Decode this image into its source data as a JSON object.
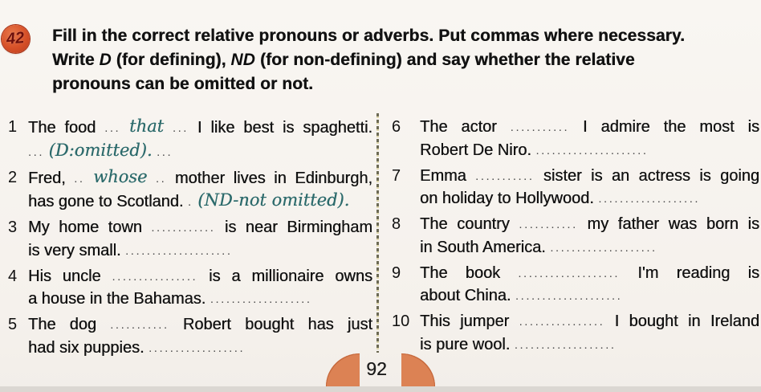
{
  "badge": {
    "number": "42"
  },
  "instructions": {
    "lines": [
      [
        {
          "t": "Fill in the correct relative pronouns or adverbs. Put commas where necessary."
        }
      ],
      [
        {
          "t": "Write "
        },
        {
          "bi": "D"
        },
        {
          "t": " (for defining), "
        },
        {
          "bi": "ND"
        },
        {
          "t": " (for non-defining) and say whether the relative"
        }
      ],
      [
        {
          "t": "pronouns can be omitted or not."
        }
      ]
    ]
  },
  "columns": {
    "left": {
      "items": [
        {
          "num": "1",
          "lines": [
            {
              "fill": true,
              "seg": [
                {
                  "t": "The food"
                },
                {
                  "d": "..."
                },
                {
                  "h": "that"
                },
                {
                  "d": "..."
                },
                {
                  "t": "I like best is spaghetti."
                }
              ]
            },
            {
              "fill": false,
              "seg": [
                {
                  "d": "..."
                },
                {
                  "h": "(D:omitted)."
                },
                {
                  "d": "..."
                }
              ]
            }
          ]
        },
        {
          "num": "2",
          "lines": [
            {
              "fill": true,
              "seg": [
                {
                  "t": "Fred,"
                },
                {
                  "d": ".."
                },
                {
                  "h": "whose"
                },
                {
                  "d": ".."
                },
                {
                  "t": "mother lives in Edinburgh,"
                }
              ]
            },
            {
              "fill": false,
              "seg": [
                {
                  "t": "has gone to Scotland."
                },
                {
                  "d": "."
                },
                {
                  "h": "(ND-not omitted)."
                }
              ]
            }
          ]
        },
        {
          "num": "3",
          "lines": [
            {
              "fill": true,
              "seg": [
                {
                  "t": "My home town"
                },
                {
                  "d": "............"
                },
                {
                  "t": "is near Birmingham"
                }
              ]
            },
            {
              "fill": false,
              "seg": [
                {
                  "t": "is very small."
                },
                {
                  "d": "...................."
                }
              ]
            }
          ]
        },
        {
          "num": "4",
          "lines": [
            {
              "fill": true,
              "seg": [
                {
                  "t": "His uncle"
                },
                {
                  "d": "................"
                },
                {
                  "t": "is a millionaire owns"
                }
              ]
            },
            {
              "fill": false,
              "seg": [
                {
                  "t": "a house in the Bahamas."
                },
                {
                  "d": "..................."
                }
              ]
            }
          ]
        },
        {
          "num": "5",
          "lines": [
            {
              "fill": true,
              "seg": [
                {
                  "t": "The dog"
                },
                {
                  "d": "..........."
                },
                {
                  "t": "Robert bought has just"
                }
              ]
            },
            {
              "fill": false,
              "seg": [
                {
                  "t": "had six puppies."
                },
                {
                  "d": ".................."
                }
              ]
            }
          ]
        }
      ]
    },
    "right": {
      "items": [
        {
          "num": "6",
          "lines": [
            {
              "fill": true,
              "seg": [
                {
                  "t": "The actor"
                },
                {
                  "d": "..........."
                },
                {
                  "t": "I admire the most is"
                }
              ]
            },
            {
              "fill": false,
              "seg": [
                {
                  "t": "Robert De Niro."
                },
                {
                  "d": "....................."
                }
              ]
            }
          ]
        },
        {
          "num": "7",
          "lines": [
            {
              "fill": true,
              "seg": [
                {
                  "t": "Emma"
                },
                {
                  "d": "..........."
                },
                {
                  "t": "sister is an actress is going"
                }
              ]
            },
            {
              "fill": false,
              "seg": [
                {
                  "t": "on holiday to Hollywood."
                },
                {
                  "d": "..................."
                }
              ]
            }
          ]
        },
        {
          "num": "8",
          "lines": [
            {
              "fill": true,
              "seg": [
                {
                  "t": "The country"
                },
                {
                  "d": "..........."
                },
                {
                  "t": "my father was born is"
                }
              ]
            },
            {
              "fill": false,
              "seg": [
                {
                  "t": "in South America."
                },
                {
                  "d": "...................."
                }
              ]
            }
          ]
        },
        {
          "num": "9",
          "lines": [
            {
              "fill": true,
              "seg": [
                {
                  "t": "The book"
                },
                {
                  "d": "..................."
                },
                {
                  "t": "I'm reading is"
                }
              ]
            },
            {
              "fill": false,
              "seg": [
                {
                  "t": "about China."
                },
                {
                  "d": "...................."
                }
              ]
            }
          ]
        },
        {
          "num": "10",
          "lines": [
            {
              "fill": true,
              "seg": [
                {
                  "t": "This jumper"
                },
                {
                  "d": "................"
                },
                {
                  "t": "I bought in Ireland"
                }
              ]
            },
            {
              "fill": false,
              "seg": [
                {
                  "t": "is pure wool."
                },
                {
                  "d": "..................."
                }
              ]
            }
          ]
        }
      ]
    }
  },
  "footer": {
    "page_number": "92"
  },
  "colors": {
    "badge_fill": "#d65028",
    "badge_number": "#6e0f0b",
    "handwriting": "#2d6b6c",
    "ornament_orange": "#dc8254",
    "divider_dash": "#55533a",
    "page_background": "#f6f2ee"
  }
}
